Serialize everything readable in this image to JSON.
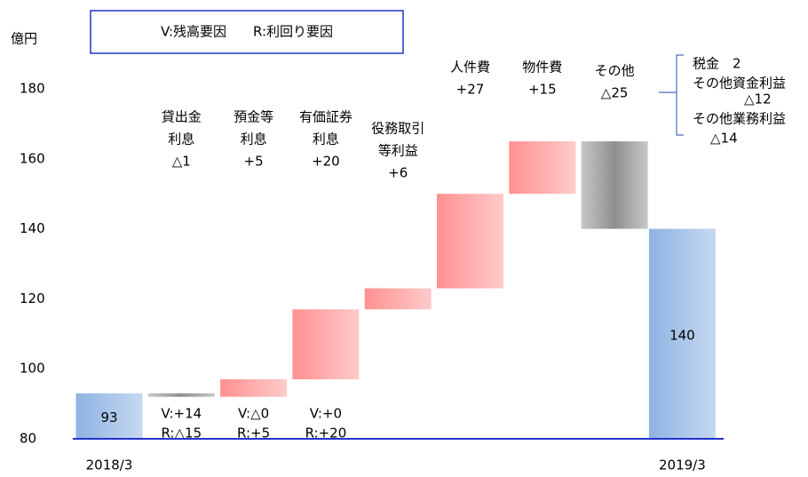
{
  "chart_data": {
    "type": "waterfall",
    "y_label": "億円",
    "legend_text": "V:残高要因　　R:利回り要因",
    "ylim": [
      80,
      180
    ],
    "yticks": [
      80,
      100,
      120,
      140,
      160,
      180
    ],
    "start": {
      "label": "2018/3",
      "value": 93
    },
    "end": {
      "label": "2019/3",
      "value": 140
    },
    "total_color": "#9dbde6",
    "increase_color": "#ff9c9c",
    "decrease_color": "#a8a8a8",
    "axis_color": "#2233cc",
    "categories": [
      [
        "貸出金",
        "利息"
      ],
      [
        "預金等",
        "利息"
      ],
      [
        "有価証券",
        "利息"
      ],
      [
        "役務取引",
        "等利益"
      ],
      [
        "人件費"
      ],
      [
        "物件費"
      ],
      [
        "その他"
      ]
    ],
    "values": [
      -1,
      5,
      20,
      6,
      27,
      15,
      -25
    ],
    "value_labels": [
      "△1",
      "+5",
      "+20",
      "+6",
      "+27",
      "+15",
      "△25"
    ],
    "notes": [
      [
        "V:+14",
        "R:△15"
      ],
      [
        "V:△0",
        "R:+5"
      ],
      [
        "V:+0",
        "R:+20"
      ]
    ],
    "side_note": [
      "税金　2",
      "その他資金利益",
      "△12",
      "その他業務利益",
      "△14"
    ]
  }
}
